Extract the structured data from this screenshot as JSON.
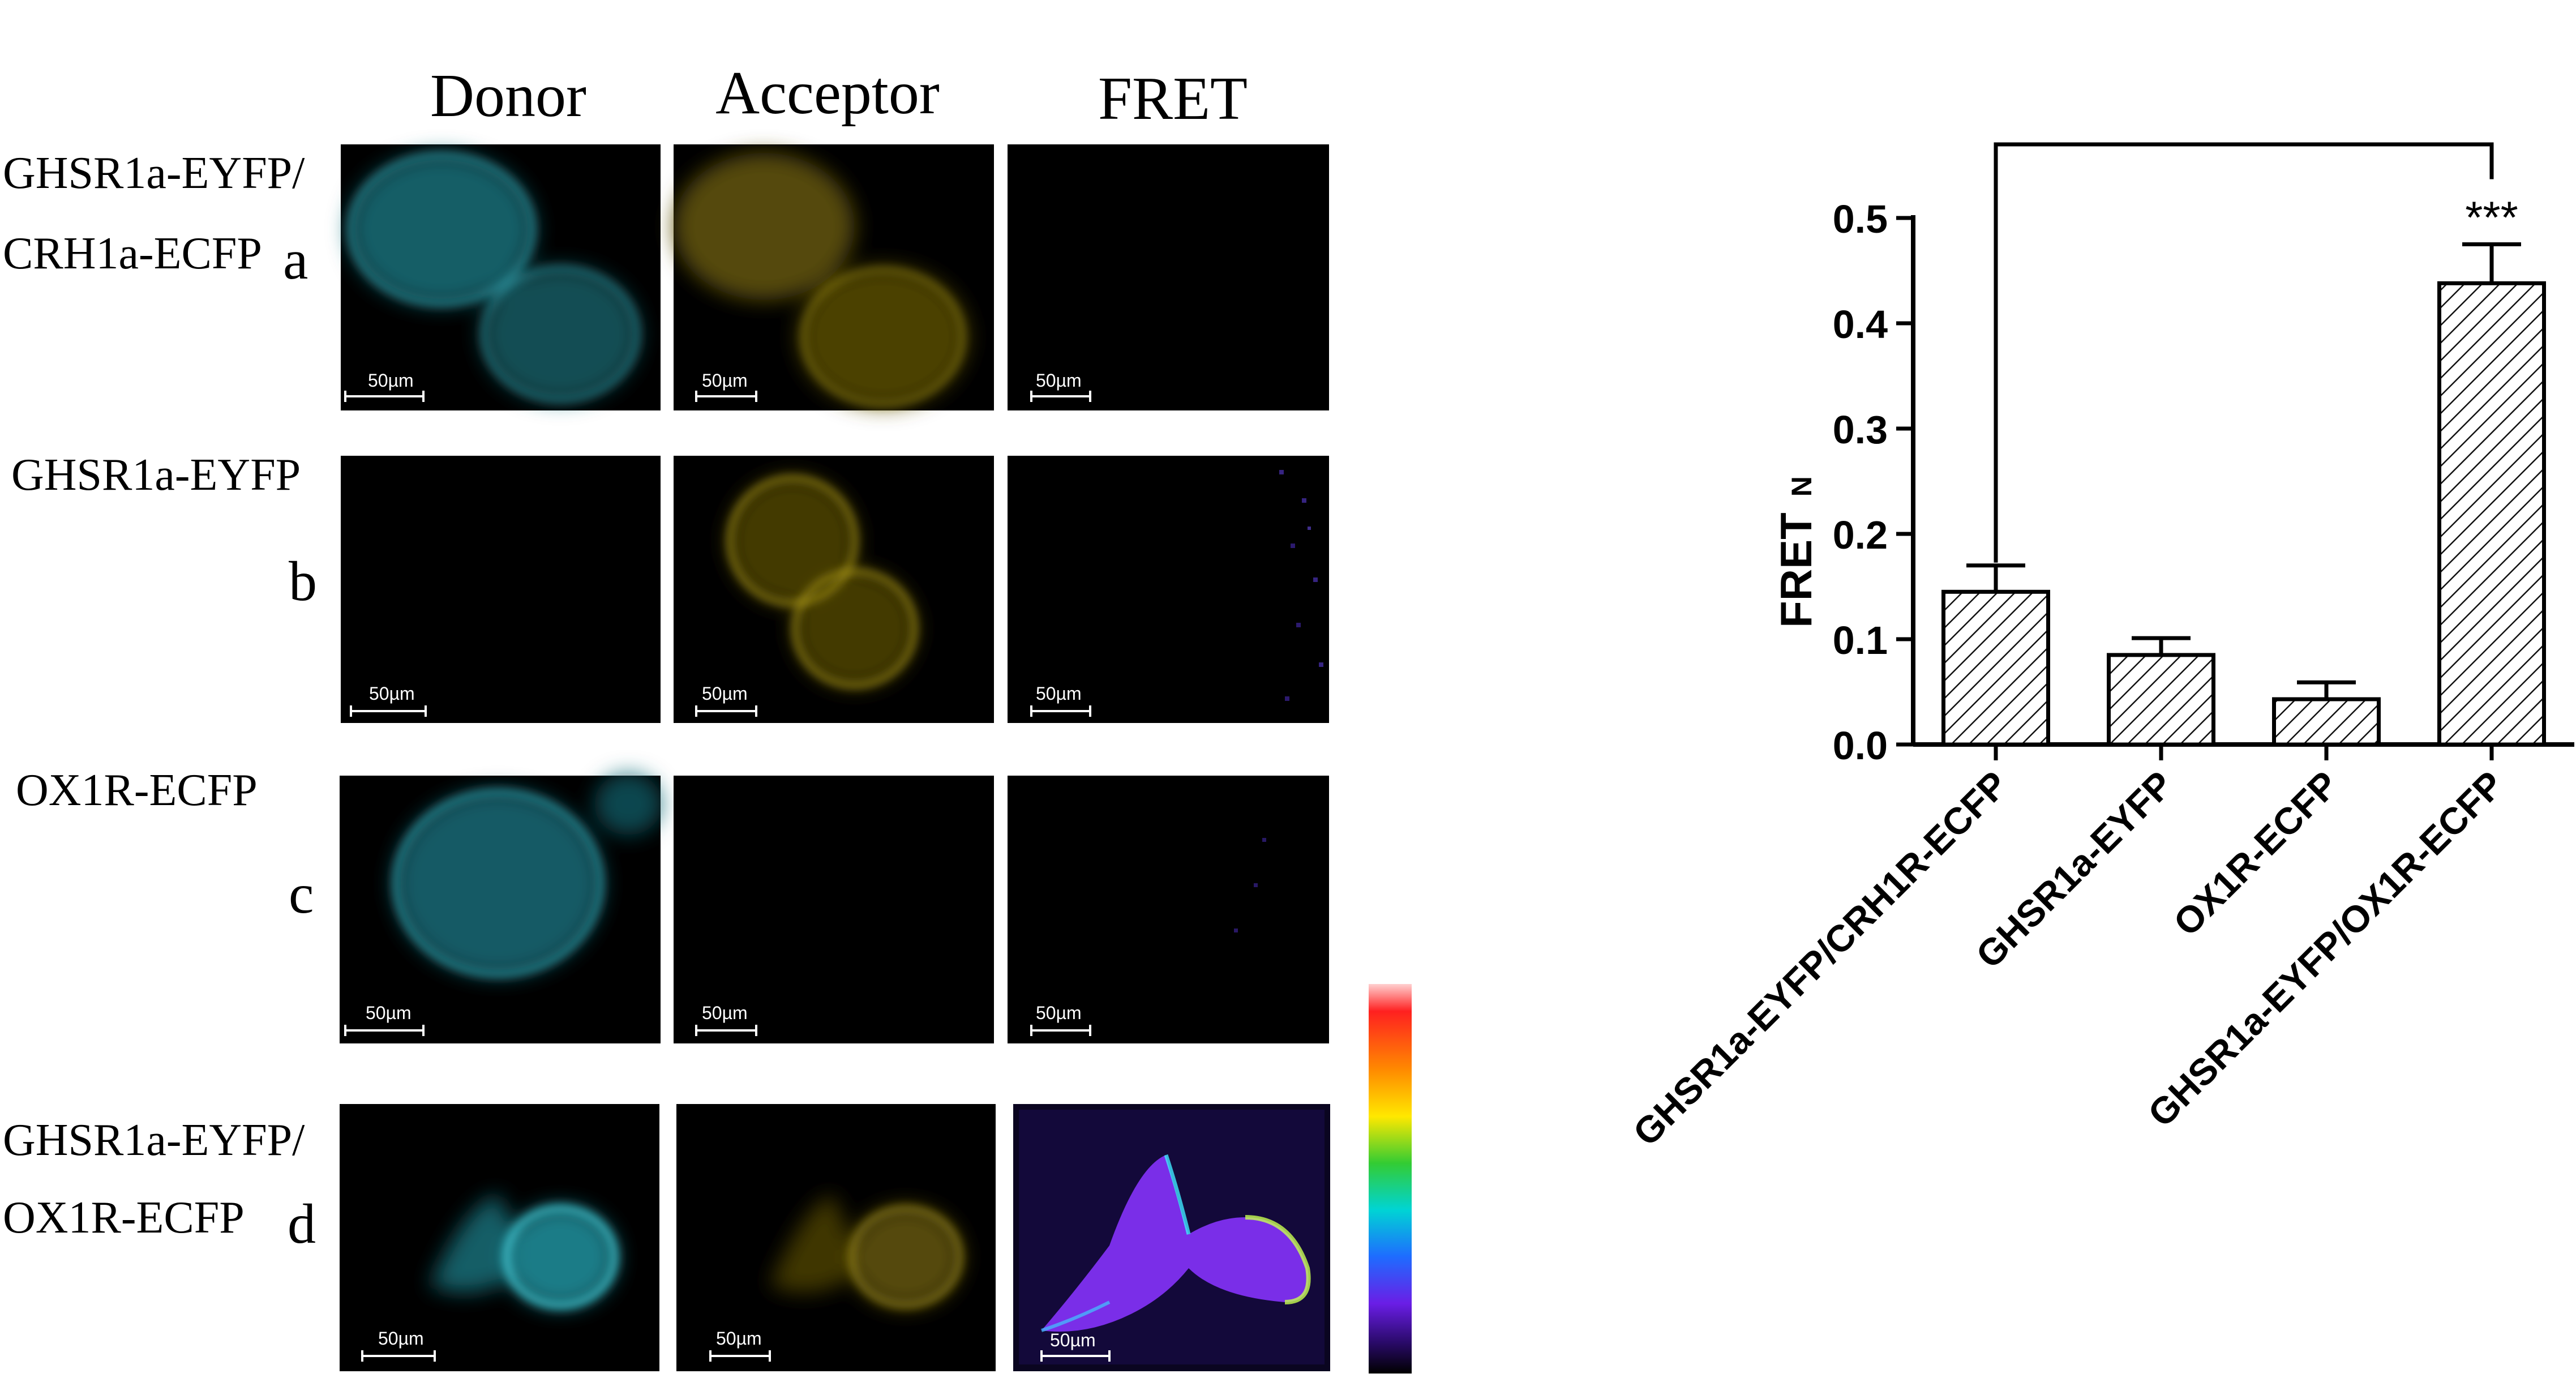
{
  "micrographs": {
    "columns": [
      "Donor",
      "Acceptor",
      "FRET"
    ],
    "rows": [
      {
        "letter": "a",
        "label_lines": [
          "GHSR1a-EYFP/",
          "CRH1a-ECFP"
        ]
      },
      {
        "letter": "b",
        "label_lines": [
          "GHSR1a-EYFP"
        ]
      },
      {
        "letter": "c",
        "label_lines": [
          "OX1R-ECFP"
        ]
      },
      {
        "letter": "d",
        "label_lines": [
          "GHSR1a-EYFP/",
          "OX1R-ECFP"
        ]
      }
    ],
    "scale_bar_label": "50µm",
    "colors": {
      "donor": "#38b8c4",
      "acceptor": "#b7a51a",
      "fret": "#7a2ee8"
    }
  },
  "chart_data": {
    "type": "bar",
    "categories": [
      "GHSR1a-EYFP/CRH1R-ECFP",
      "GHSR1a-EYFP",
      "OX1R-ECFP",
      "GHSR1a-EYFP/OX1R-ECFP"
    ],
    "values": [
      0.145,
      0.085,
      0.043,
      0.438
    ],
    "errors": [
      0.025,
      0.016,
      0.016,
      0.037
    ],
    "ylabel": "FRET",
    "ylabel_subscript": "N",
    "ylim": [
      0,
      0.5
    ],
    "yticks": [
      "0.0",
      "0.1",
      "0.2",
      "0.3",
      "0.4",
      "0.5"
    ],
    "significance": {
      "label": "***",
      "from": 0,
      "to": 3
    },
    "bar_fill": "hatched"
  }
}
